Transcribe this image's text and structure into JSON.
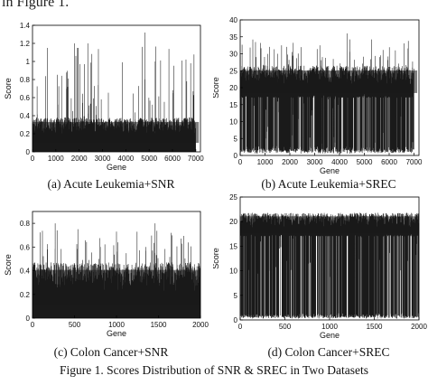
{
  "page_text": {
    "top_fragment": "in Figure 1."
  },
  "figure_caption": "Figure 1.   Scores Distribution of SNR & SREC in Two Datasets",
  "chart_data": [
    {
      "type": "bar",
      "caption": "(a) Acute Leukemia+SNR",
      "xlabel": "Gene",
      "ylabel": "Score",
      "xlim": [
        0,
        7200
      ],
      "ylim": [
        0,
        1.4
      ],
      "xticks": [
        0,
        1000,
        2000,
        3000,
        4000,
        5000,
        6000,
        7000
      ],
      "yticks": [
        0,
        0.2,
        0.4,
        0.6,
        0.8,
        1,
        1.2,
        1.4
      ],
      "n_genes": 7129,
      "distribution": {
        "baseline": 0,
        "band_low": 0.05,
        "band_high": 0.38,
        "peak_max": 1.32
      },
      "peaks": [
        [
          640,
          1.15
        ],
        [
          1800,
          1.2
        ],
        [
          1960,
          1.15
        ],
        [
          2370,
          1.2
        ],
        [
          4820,
          1.32
        ],
        [
          5260,
          1.0
        ],
        [
          6780,
          0.98
        ]
      ]
    },
    {
      "type": "bar",
      "caption": "(b) Acute Leukemia+SREC",
      "xlabel": "Gene",
      "ylabel": "Score",
      "xlim": [
        0,
        7200
      ],
      "ylim": [
        0,
        40
      ],
      "xticks": [
        0,
        1000,
        2000,
        3000,
        4000,
        5000,
        6000,
        7000
      ],
      "yticks": [
        0,
        5,
        10,
        15,
        20,
        25,
        30,
        35,
        40
      ],
      "n_genes": 7129,
      "distribution": {
        "baseline": 0,
        "band_low": 17,
        "band_high": 26.5,
        "dip_min": 3,
        "peak_max": 36
      },
      "peaks": [
        [
          4300,
          36
        ],
        [
          6250,
          31
        ],
        [
          1500,
          30
        ]
      ],
      "dips": [
        [
          1050,
          5
        ],
        [
          1950,
          3
        ],
        [
          3300,
          3.5
        ],
        [
          5500,
          4
        ]
      ]
    },
    {
      "type": "bar",
      "caption": "(c) Colon Cancer+SNR",
      "xlabel": "Gene",
      "ylabel": "Score",
      "xlim": [
        0,
        2000
      ],
      "ylim": [
        0,
        0.9
      ],
      "xticks": [
        0,
        500,
        1000,
        1500,
        2000
      ],
      "yticks": [
        0,
        0.2,
        0.4,
        0.6,
        0.8
      ],
      "n_genes": 2000,
      "distribution": {
        "baseline": 0,
        "band_low": 0.05,
        "band_high": 0.47,
        "peak_max": 0.82
      },
      "peaks": [
        [
          270,
          0.8
        ],
        [
          540,
          0.75
        ],
        [
          1460,
          0.8
        ],
        [
          1650,
          0.72
        ]
      ]
    },
    {
      "type": "bar",
      "caption": "(d) Colon Cancer+SREC",
      "xlabel": "Gene",
      "ylabel": "Score",
      "xlim": [
        0,
        2000
      ],
      "ylim": [
        0,
        25
      ],
      "xticks": [
        0,
        500,
        1000,
        1500,
        2000
      ],
      "yticks": [
        0,
        5,
        10,
        15,
        20,
        25
      ],
      "n_genes": 2000,
      "distribution": {
        "baseline": 0,
        "band_low": 17,
        "band_high": 21.8,
        "dip_min": 8,
        "peak_max": 21.8
      },
      "dips": [
        [
          160,
          8
        ],
        [
          330,
          10
        ],
        [
          520,
          12
        ],
        [
          1590,
          9
        ],
        [
          1870,
          12
        ]
      ]
    }
  ]
}
